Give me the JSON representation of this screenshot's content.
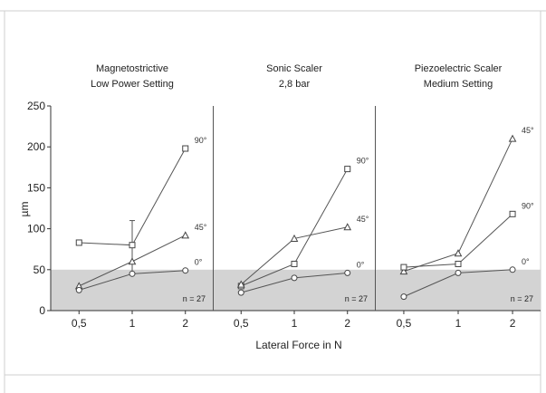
{
  "chart_data": {
    "type": "line",
    "ylabel": "µm",
    "xlabel": "Lateral Force in N",
    "ylim": [
      0,
      250
    ],
    "yticks": [
      "0",
      "50",
      "100",
      "150",
      "200",
      "250"
    ],
    "x_categories": [
      "0,5",
      "1",
      "2"
    ],
    "threshold": 50,
    "shading_color": "#d3d3d3",
    "line_color": "#555555",
    "panels": [
      {
        "title_line1": "Magnetostrictive",
        "title_line2": "Low Power Setting",
        "note": "n = 27",
        "series": [
          {
            "name": "90°",
            "marker": "square",
            "values": [
              83,
              80,
              198
            ]
          },
          {
            "name": "45°",
            "marker": "triangle",
            "values": [
              30,
              60,
              92
            ]
          },
          {
            "name": "0°",
            "marker": "circle",
            "values": [
              25,
              45,
              49
            ]
          }
        ],
        "error_bars": [
          {
            "series": "90°",
            "category": "1",
            "upper": 110,
            "lower": 45
          }
        ]
      },
      {
        "title_line1": "Sonic Scaler",
        "title_line2": "2,8 bar",
        "note": "n = 27",
        "series": [
          {
            "name": "90°",
            "marker": "square",
            "values": [
              30,
              57,
              173
            ]
          },
          {
            "name": "45°",
            "marker": "triangle",
            "values": [
              32,
              88,
              102
            ]
          },
          {
            "name": "0°",
            "marker": "circle",
            "values": [
              22,
              40,
              46
            ]
          }
        ],
        "error_bars": []
      },
      {
        "title_line1": "Piezoelectric Scaler",
        "title_line2": "Medium Setting",
        "note": "n = 27",
        "series": [
          {
            "name": "45°",
            "marker": "triangle",
            "values": [
              48,
              70,
              210
            ]
          },
          {
            "name": "90°",
            "marker": "square",
            "values": [
              53,
              57,
              118
            ]
          },
          {
            "name": "0°",
            "marker": "circle",
            "values": [
              17,
              46,
              50
            ]
          }
        ],
        "error_bars": []
      }
    ]
  }
}
